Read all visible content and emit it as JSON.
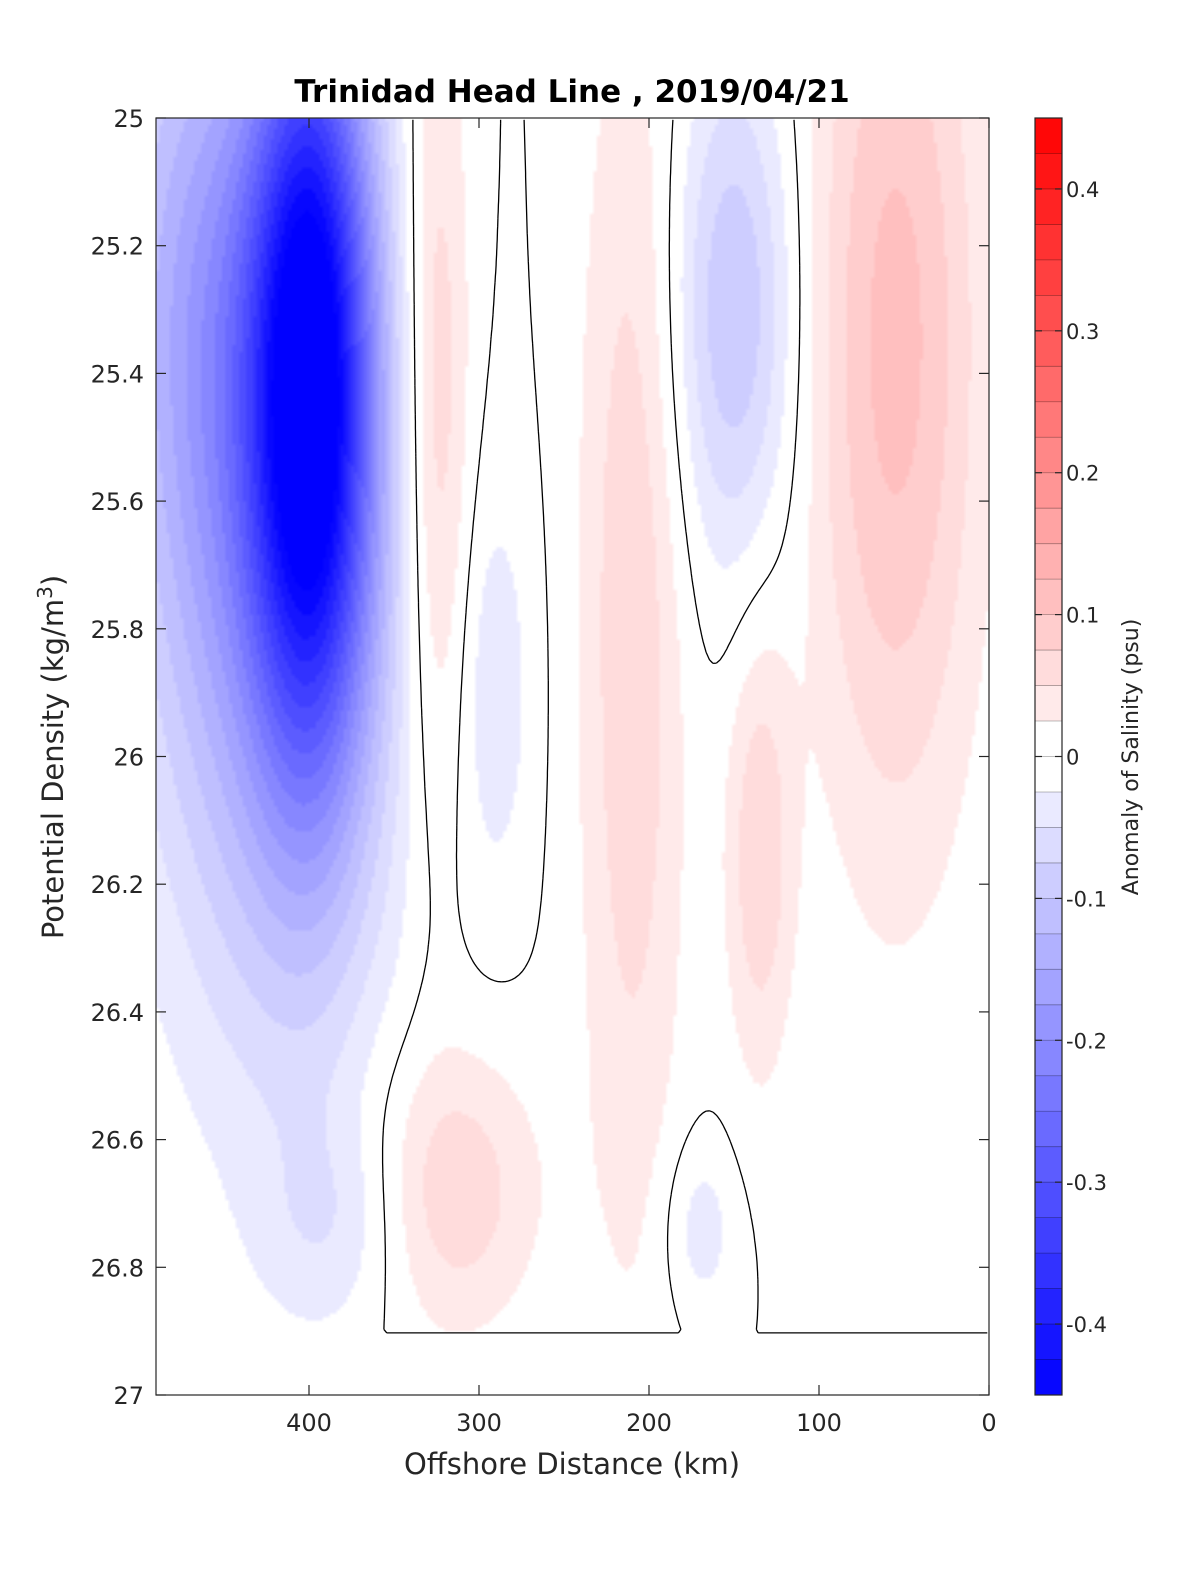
{
  "chart_data": {
    "type": "heatmap",
    "subtype": "filled-contour",
    "title": "Trinidad Head Line , 2019/04/21",
    "xlabel": "Offshore Distance (km)",
    "ylabel_main": "Potential Density (kg/m",
    "ylabel_sup": "3",
    "ylabel_end": ")",
    "colorbar_label": "Anomaly of Salinity (psu)",
    "xlim": [
      490,
      0
    ],
    "x_reversed": true,
    "ylim": [
      25,
      27
    ],
    "y_reversed": true,
    "clim": [
      -0.45,
      0.45
    ],
    "colormap": "blue-white-red",
    "colors": {
      "negative": "#0000ff",
      "zero": "#ffffff",
      "positive": "#ff0000",
      "contour": "#000000"
    },
    "contour_levels_step": 0.025,
    "zero_contour_drawn": true,
    "x_ticks": [
      "400",
      "300",
      "200",
      "100",
      "0"
    ],
    "x_tick_values": [
      400,
      300,
      200,
      100,
      0
    ],
    "y_ticks": [
      "25",
      "25.2",
      "25.4",
      "25.6",
      "25.8",
      "26",
      "26.2",
      "26.4",
      "26.6",
      "26.8",
      "27"
    ],
    "y_tick_values": [
      25,
      25.2,
      25.4,
      25.6,
      25.8,
      26,
      26.2,
      26.4,
      26.6,
      26.8,
      27
    ],
    "colorbar_ticks": [
      "0.4",
      "0.3",
      "0.2",
      "0.1",
      "0",
      "-0.1",
      "-0.2",
      "-0.3",
      "-0.4"
    ],
    "colorbar_tick_values": [
      0.4,
      0.3,
      0.2,
      0.1,
      0,
      -0.1,
      -0.2,
      -0.3,
      -0.4
    ],
    "features": [
      {
        "name": "strong fresh core",
        "x_center": 398,
        "x_width": 25,
        "sigma_center": 25.4,
        "sigma_width": 0.42,
        "anomaly": -0.42
      },
      {
        "name": "fresh band",
        "x_center": 420,
        "x_width": 50,
        "sigma_center": 25.75,
        "sigma_width": 0.5,
        "anomaly": -0.14
      },
      {
        "name": "fresh band shallow",
        "x_center": 460,
        "x_width": 40,
        "sigma_center": 25.25,
        "sigma_width": 0.4,
        "anomaly": -0.12
      },
      {
        "name": "salty band",
        "x_center": 325,
        "x_width": 14,
        "sigma_center": 25.45,
        "sigma_width": 0.45,
        "anomaly": 0.08
      },
      {
        "name": "salty band",
        "x_center": 210,
        "x_width": 22,
        "sigma_center": 25.8,
        "sigma_width": 0.7,
        "anomaly": 0.07
      },
      {
        "name": "salty deep",
        "x_center": 315,
        "x_width": 35,
        "sigma_center": 26.68,
        "sigma_width": 0.16,
        "anomaly": 0.07
      },
      {
        "name": "fresh patch",
        "x_center": 150,
        "x_width": 25,
        "sigma_center": 25.3,
        "sigma_width": 0.28,
        "anomaly": -0.1
      },
      {
        "name": "fresh patch",
        "x_center": 290,
        "x_width": 15,
        "sigma_center": 25.9,
        "sigma_width": 0.22,
        "anomaly": -0.04
      },
      {
        "name": "salty band",
        "x_center": 135,
        "x_width": 14,
        "sigma_center": 26.15,
        "sigma_width": 0.25,
        "anomaly": 0.07
      },
      {
        "name": "salty band",
        "x_center": 55,
        "x_width": 35,
        "sigma_center": 25.35,
        "sigma_width": 0.55,
        "anomaly": 0.11
      },
      {
        "name": "fresh patch",
        "x_center": 385,
        "x_width": 30,
        "sigma_center": 26.73,
        "sigma_width": 0.12,
        "anomaly": -0.04
      },
      {
        "name": "fresh patch",
        "x_center": 170,
        "x_width": 15,
        "sigma_center": 26.74,
        "sigma_width": 0.1,
        "anomaly": -0.04
      }
    ]
  }
}
